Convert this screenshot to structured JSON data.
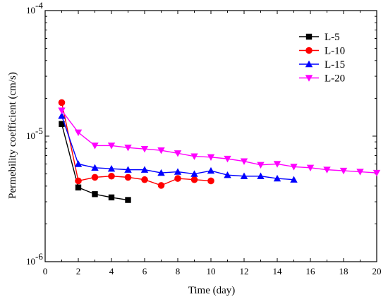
{
  "chart_data": {
    "type": "line",
    "xlabel": "Time (day)",
    "ylabel": "Permebility coefficient (cm/s)",
    "xlim": [
      0,
      20
    ],
    "ylim": [
      1e-06,
      0.0001
    ],
    "yscale": "log",
    "x_ticks": [
      "0",
      "2",
      "4",
      "6",
      "8",
      "10",
      "12",
      "14",
      "16",
      "18",
      "20"
    ],
    "y_ticks": [
      {
        "value": 1e-06,
        "base": "10",
        "exp": "-6"
      },
      {
        "value": 1e-05,
        "base": "10",
        "exp": "-5"
      },
      {
        "value": 0.0001,
        "base": "10",
        "exp": "-4"
      }
    ],
    "grid": false,
    "legend": "top-right",
    "series": [
      {
        "name": "L-5",
        "color": "#000000",
        "marker": "square",
        "x": [
          1,
          2,
          3,
          4,
          5
        ],
        "y": [
          1.25e-05,
          3.9e-06,
          3.45e-06,
          3.25e-06,
          3.1e-06
        ]
      },
      {
        "name": "L-10",
        "color": "#ff0000",
        "marker": "circle",
        "x": [
          1,
          2,
          3,
          4,
          5,
          6,
          7,
          8,
          9,
          10
        ],
        "y": [
          1.85e-05,
          4.4e-06,
          4.7e-06,
          4.8e-06,
          4.7e-06,
          4.5e-06,
          4.05e-06,
          4.6e-06,
          4.5e-06,
          4.4e-06
        ]
      },
      {
        "name": "L-15",
        "color": "#0000ff",
        "marker": "triangle-up",
        "x": [
          1,
          2,
          3,
          4,
          5,
          6,
          7,
          8,
          9,
          10,
          11,
          12,
          13,
          14,
          15
        ],
        "y": [
          1.45e-05,
          6e-06,
          5.6e-06,
          5.5e-06,
          5.4e-06,
          5.4e-06,
          5.1e-06,
          5.2e-06,
          5e-06,
          5.3e-06,
          4.9e-06,
          4.8e-06,
          4.8e-06,
          4.6e-06,
          4.5e-06
        ]
      },
      {
        "name": "L-20",
        "color": "#ff00ff",
        "marker": "triangle-down",
        "x": [
          1,
          2,
          3,
          4,
          5,
          6,
          7,
          8,
          9,
          10,
          11,
          12,
          13,
          14,
          15,
          16,
          17,
          18,
          19,
          20
        ],
        "y": [
          1.6e-05,
          1.07e-05,
          8.4e-06,
          8.4e-06,
          8.1e-06,
          7.9e-06,
          7.7e-06,
          7.3e-06,
          6.9e-06,
          6.8e-06,
          6.6e-06,
          6.3e-06,
          5.9e-06,
          6e-06,
          5.7e-06,
          5.6e-06,
          5.4e-06,
          5.3e-06,
          5.2e-06,
          5.1e-06
        ]
      }
    ]
  }
}
